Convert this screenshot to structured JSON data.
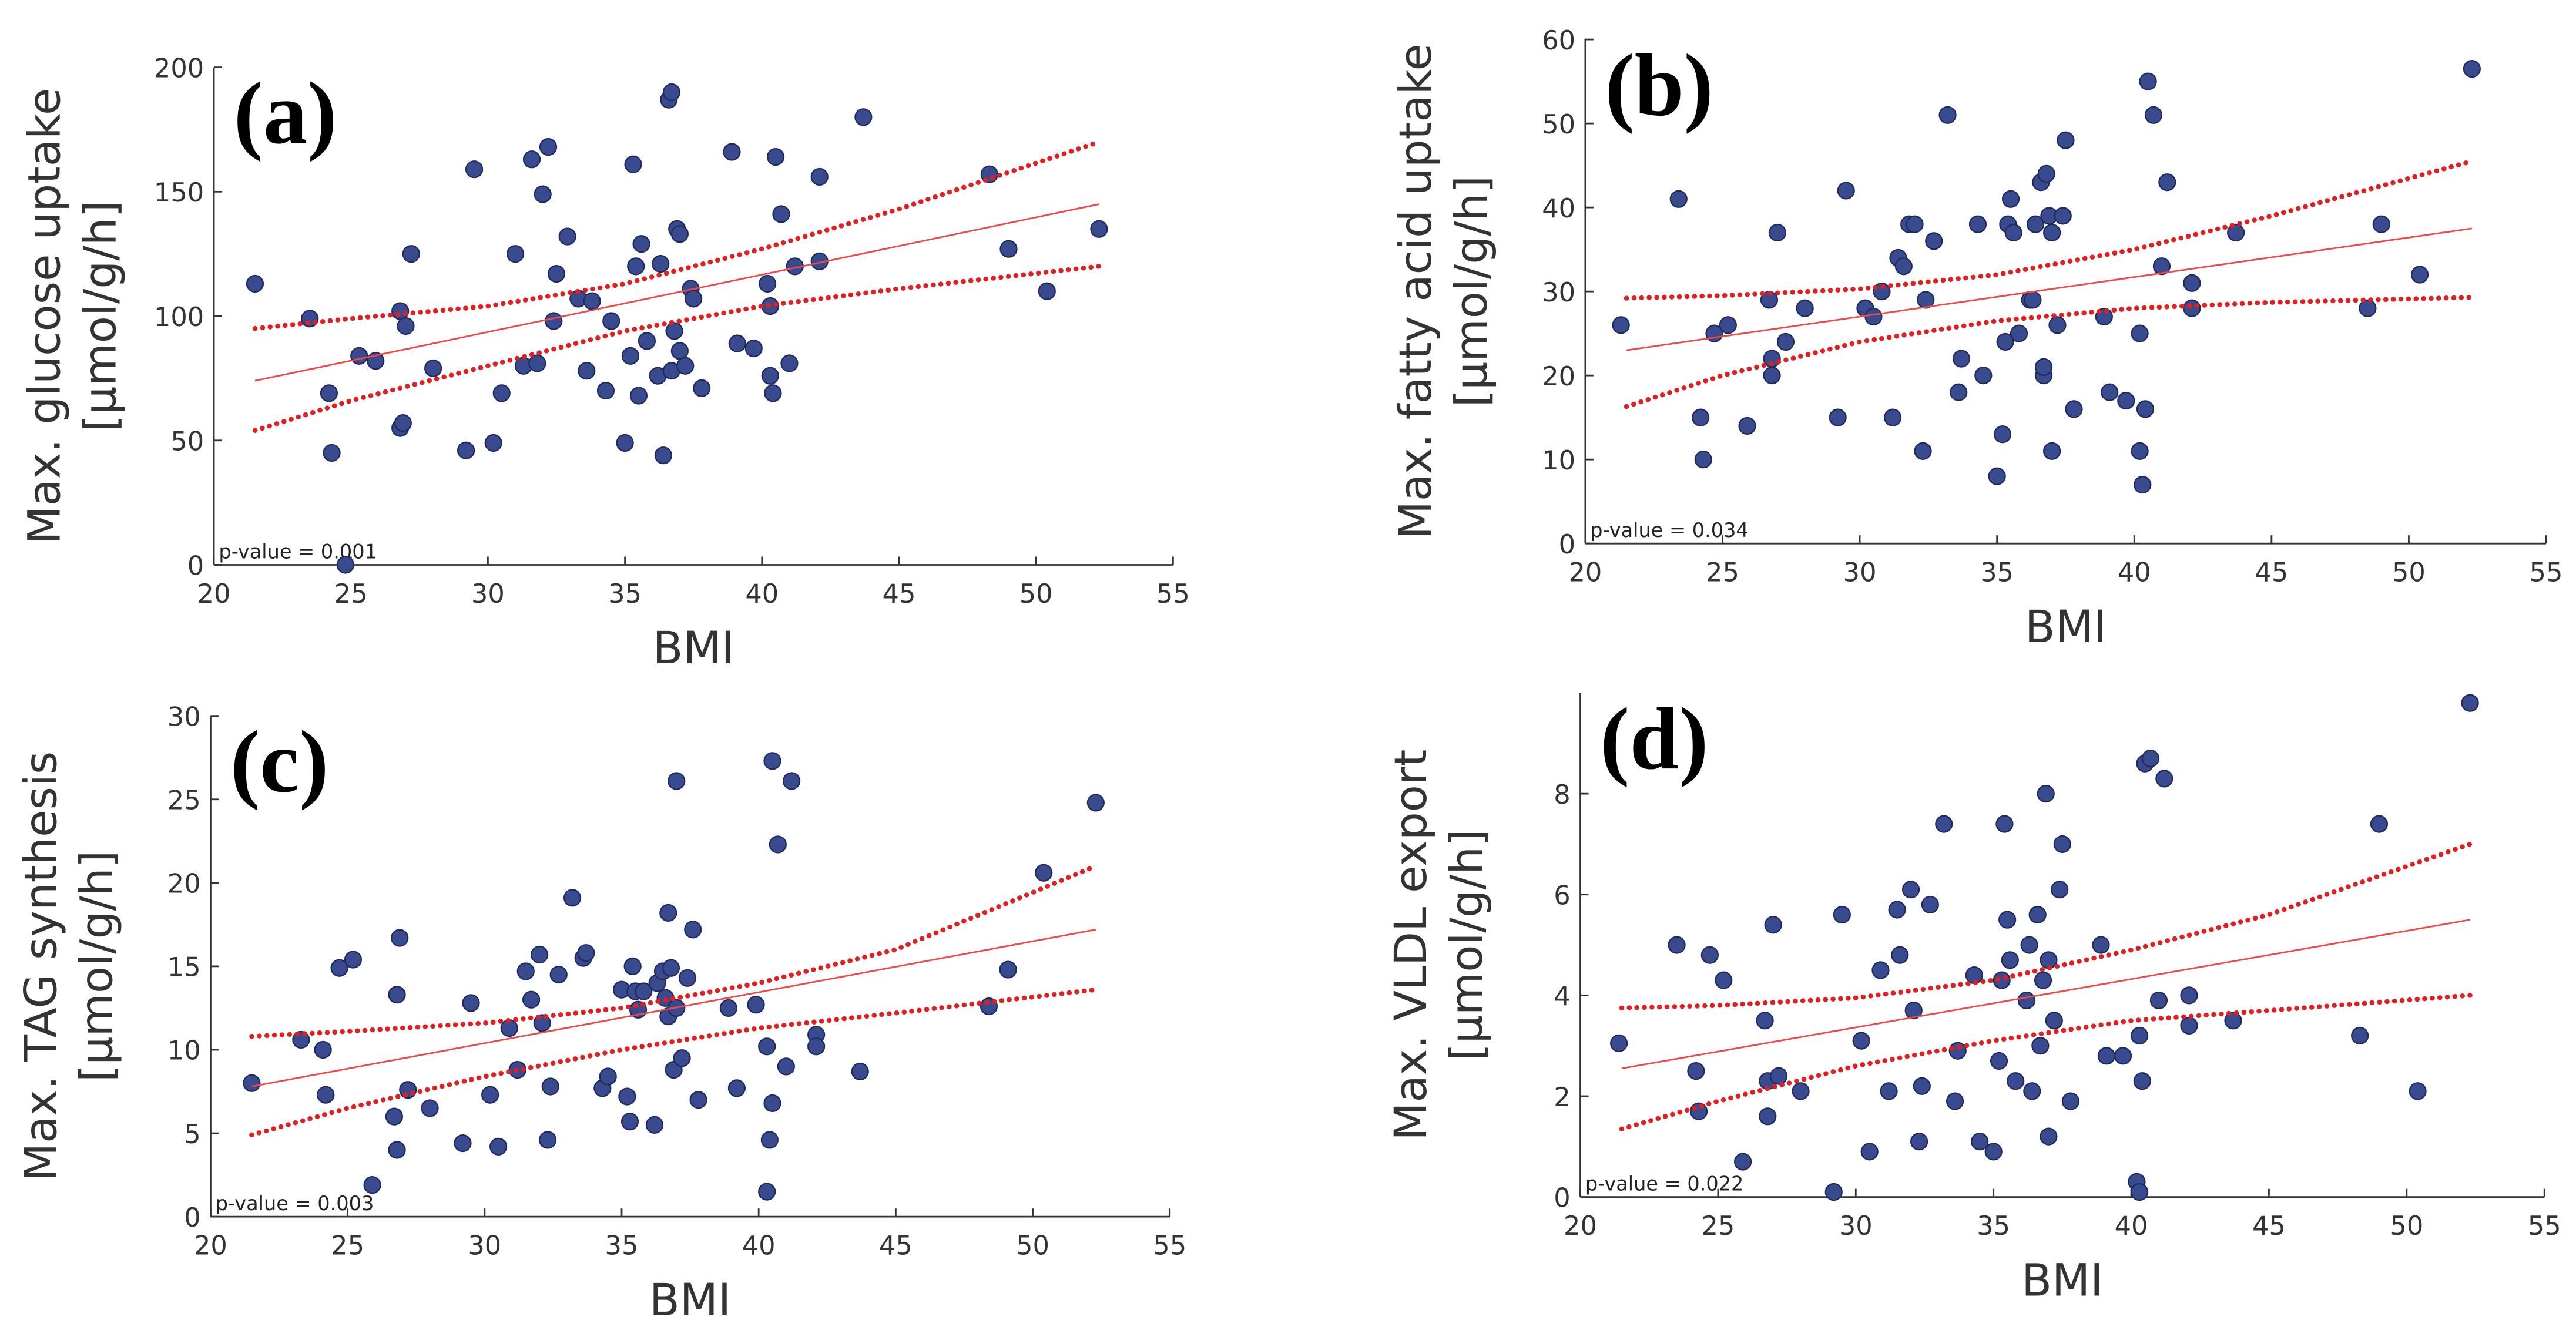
{
  "chart_data": [
    {
      "type": "scatter",
      "label": "(a)",
      "ylabel": [
        "Max. glucose uptake",
        "[μmol/g/h]"
      ],
      "xlabel": "BMI",
      "annotation": "p-value = 0.001",
      "xlim": [
        20,
        55
      ],
      "ylim": [
        0,
        200
      ],
      "xticks": [
        20,
        25,
        30,
        35,
        40,
        45,
        50,
        55
      ],
      "yticks": [
        0,
        50,
        100,
        150,
        200
      ],
      "points": {
        "color": "#3a4a8f",
        "x": [
          21.5,
          23.5,
          24.2,
          24.3,
          24.8,
          25.3,
          25.9,
          26.8,
          26.8,
          26.9,
          27,
          27.2,
          28,
          29.2,
          29.5,
          30.2,
          30.5,
          31,
          31.3,
          31.6,
          31.8,
          32,
          32.2,
          32.4,
          32.5,
          32.9,
          33.3,
          33.6,
          33.8,
          34.3,
          34.5,
          35,
          35.2,
          35.3,
          35.4,
          35.5,
          35.6,
          35.8,
          36.2,
          36.3,
          36.4,
          36.6,
          36.7,
          36.7,
          36.8,
          36.9,
          37,
          37,
          37.2,
          37.4,
          37.5,
          37.8,
          38.9,
          39.1,
          39.7,
          40.2,
          40.3,
          40.3,
          40.4,
          40.5,
          40.7,
          41,
          41.2,
          42.1,
          42.1,
          43.7,
          48.3,
          49,
          50.4,
          52.3
        ],
        "y": [
          113,
          99,
          69,
          45,
          0,
          84,
          82,
          102,
          55,
          57,
          96,
          125,
          79,
          46,
          159,
          49,
          69,
          125,
          80,
          163,
          81,
          149,
          168,
          98,
          117,
          132,
          107,
          78,
          106,
          70,
          98,
          49,
          84,
          161,
          120,
          68,
          129,
          90,
          76,
          121,
          44,
          187,
          190,
          78,
          94,
          135,
          133,
          86,
          80,
          111,
          107,
          71,
          166,
          89,
          87,
          113,
          104,
          76,
          69,
          164,
          141,
          81,
          120,
          156,
          122,
          180,
          157,
          127,
          110,
          135
        ]
      },
      "fit": {
        "color": "#f04848",
        "x": [
          21.5,
          52.3
        ],
        "y": [
          74,
          145
        ]
      },
      "ci_upper": {
        "color": "#e02020",
        "x": [
          21.5,
          25,
          30,
          35,
          40,
          45,
          52.3
        ],
        "y": [
          95,
          99,
          104,
          113,
          127,
          143,
          170
        ]
      },
      "ci_lower": {
        "color": "#e02020",
        "x": [
          21.5,
          25,
          30,
          35,
          40,
          45,
          52.3
        ],
        "y": [
          54,
          66,
          80,
          94,
          104,
          111,
          120
        ]
      }
    },
    {
      "type": "scatter",
      "label": "(b)",
      "ylabel": [
        "Max. fatty acid uptake",
        "[μmol/g/h]"
      ],
      "xlabel": "BMI",
      "annotation": "p-value = 0.034",
      "xlim": [
        20,
        55
      ],
      "ylim": [
        0,
        60
      ],
      "xticks": [
        20,
        25,
        30,
        35,
        40,
        45,
        50,
        55
      ],
      "yticks": [
        0,
        10,
        20,
        30,
        40,
        50,
        60
      ],
      "points": {
        "color": "#3a4a8f",
        "x": [
          21.3,
          23.4,
          24.2,
          24.3,
          24.7,
          25.2,
          25.9,
          26.7,
          26.8,
          26.8,
          27,
          27.3,
          28,
          29.2,
          29.5,
          30.2,
          30.5,
          30.8,
          31.2,
          31.4,
          31.6,
          31.8,
          32,
          32.3,
          32.4,
          32.7,
          33.2,
          33.6,
          33.7,
          34.3,
          34.5,
          35,
          35.2,
          35.3,
          35.4,
          35.5,
          35.6,
          35.8,
          36.2,
          36.3,
          36.4,
          36.6,
          36.7,
          36.7,
          36.8,
          36.9,
          37,
          37,
          37.2,
          37.4,
          37.5,
          37.8,
          38.9,
          39.1,
          39.7,
          40.2,
          40.2,
          40.3,
          40.4,
          40.5,
          40.7,
          41,
          41.2,
          42.1,
          42.1,
          43.7,
          48.5,
          49,
          50.4,
          52.3
        ],
        "y": [
          26,
          41,
          15,
          10,
          25,
          26,
          14,
          29,
          22,
          20,
          37,
          24,
          28,
          15,
          42,
          28,
          27,
          30,
          15,
          34,
          33,
          38,
          38,
          11,
          29,
          36,
          51,
          18,
          22,
          38,
          20,
          8,
          13,
          24,
          38,
          41,
          37,
          25,
          29,
          29,
          38,
          43,
          20,
          21,
          44,
          39,
          37,
          11,
          26,
          39,
          48,
          16,
          27,
          18,
          17,
          11,
          25,
          7,
          16,
          55,
          51,
          33,
          43,
          31,
          28,
          37,
          28,
          38,
          32,
          56.5
        ]
      },
      "fit": {
        "color": "#f04848",
        "x": [
          21.5,
          52.3
        ],
        "y": [
          23,
          37.5
        ]
      },
      "ci_upper": {
        "color": "#e02020",
        "x": [
          21.5,
          25,
          30,
          35,
          40,
          45,
          52.3
        ],
        "y": [
          29.2,
          29.5,
          30.3,
          32,
          35,
          39,
          45.5
        ]
      },
      "ci_lower": {
        "color": "#e02020",
        "x": [
          21.5,
          25,
          30,
          35,
          40,
          45,
          52.3
        ],
        "y": [
          16.3,
          20,
          24,
          26.5,
          28,
          28.7,
          29.3
        ]
      }
    },
    {
      "type": "scatter",
      "label": "(c)",
      "ylabel": [
        "Max. TAG synthesis",
        "[μmol/g/h]"
      ],
      "xlabel": "BMI",
      "annotation": "p-value = 0.003",
      "xlim": [
        20,
        55
      ],
      "ylim": [
        0,
        30
      ],
      "xticks": [
        20,
        25,
        30,
        35,
        40,
        45,
        50,
        55
      ],
      "yticks": [
        0,
        5,
        10,
        15,
        20,
        25,
        30
      ],
      "points": {
        "color": "#3a4a8f",
        "x": [
          21.5,
          23.3,
          24.1,
          24.2,
          24.7,
          25.2,
          25.9,
          26.7,
          26.8,
          26.8,
          26.9,
          27.2,
          28,
          29.2,
          29.5,
          30.2,
          30.5,
          30.9,
          31.2,
          31.5,
          31.7,
          32,
          32.1,
          32.3,
          32.4,
          32.7,
          33.2,
          33.6,
          33.7,
          34.3,
          34.5,
          35,
          35.2,
          35.3,
          35.4,
          35.5,
          35.6,
          35.8,
          36.2,
          36.3,
          36.5,
          36.6,
          36.7,
          36.7,
          36.8,
          36.9,
          37,
          37,
          37.2,
          37.4,
          37.6,
          37.8,
          38.9,
          39.2,
          39.9,
          40.3,
          40.3,
          40.4,
          40.5,
          40.5,
          40.7,
          41,
          41.2,
          42.1,
          42.1,
          43.7,
          48.4,
          49.1,
          50.4,
          52.3
        ],
        "y": [
          8,
          10.6,
          10,
          7.3,
          14.9,
          15.4,
          1.9,
          6,
          4,
          13.3,
          16.7,
          7.6,
          6.5,
          4.4,
          12.8,
          7.3,
          4.2,
          11.3,
          8.8,
          14.7,
          13,
          15.7,
          11.6,
          4.6,
          7.8,
          14.5,
          19.1,
          15.5,
          15.8,
          7.7,
          8.4,
          13.6,
          7.2,
          5.7,
          15,
          13.5,
          12.4,
          13.5,
          5.5,
          14,
          14.7,
          13.1,
          18.2,
          12,
          14.9,
          8.8,
          12.5,
          26.1,
          9.5,
          14.3,
          17.2,
          7,
          12.5,
          7.7,
          12.7,
          10.2,
          1.5,
          4.6,
          6.8,
          27.3,
          22.3,
          9,
          26.1,
          10.9,
          10.2,
          8.7,
          12.6,
          14.8,
          20.6,
          24.8
        ]
      },
      "fit": {
        "color": "#f04848",
        "x": [
          21.5,
          52.3
        ],
        "y": [
          7.8,
          17.2
        ]
      },
      "ci_upper": {
        "color": "#e02020",
        "x": [
          21.5,
          25,
          30,
          35,
          40,
          45,
          52.3
        ],
        "y": [
          10.8,
          11.1,
          11.6,
          12.5,
          14,
          16,
          21
        ]
      },
      "ci_lower": {
        "color": "#e02020",
        "x": [
          21.5,
          25,
          30,
          35,
          40,
          45,
          52.3
        ],
        "y": [
          4.9,
          6.5,
          8.4,
          10,
          11.3,
          12.2,
          13.6
        ]
      }
    },
    {
      "type": "scatter",
      "label": "(d)",
      "ylabel": [
        "Max. VLDL export",
        "[μmol/g/h]"
      ],
      "xlabel": "BMI",
      "annotation": "p-value = 0.022",
      "xlim": [
        20,
        55
      ],
      "ylim": [
        0,
        10
      ],
      "xticks": [
        20,
        25,
        30,
        35,
        40,
        45,
        50,
        55
      ],
      "yticks": [
        0,
        2,
        4,
        6,
        8
      ],
      "points": {
        "color": "#3a4a8f",
        "x": [
          21.4,
          23.5,
          24.2,
          24.3,
          24.7,
          25.2,
          25.9,
          26.7,
          26.8,
          26.8,
          27,
          27.2,
          28,
          29.2,
          29.5,
          30.2,
          30.5,
          30.9,
          31.2,
          31.5,
          31.6,
          32,
          32.1,
          32.3,
          32.4,
          32.7,
          33.2,
          33.6,
          33.7,
          34.3,
          34.5,
          35,
          35.2,
          35.3,
          35.4,
          35.5,
          35.6,
          35.8,
          36.2,
          36.3,
          36.4,
          36.6,
          36.7,
          36.8,
          36.9,
          37,
          37,
          37.2,
          37.4,
          37.5,
          37.8,
          38.9,
          39.1,
          39.7,
          40.2,
          40.3,
          40.3,
          40.4,
          40.5,
          40.7,
          41,
          41.2,
          42.1,
          42.1,
          43.7,
          48.3,
          49,
          50.4,
          52.3
        ],
        "y": [
          3.05,
          5,
          2.5,
          1.7,
          4.8,
          4.3,
          0.7,
          3.5,
          1.6,
          2.3,
          5.4,
          2.4,
          2.1,
          0.1,
          5.6,
          3.1,
          0.9,
          4.5,
          2.1,
          5.7,
          4.8,
          6.1,
          3.7,
          1.1,
          2.2,
          5.8,
          7.4,
          1.9,
          2.9,
          4.4,
          1.1,
          0.9,
          2.7,
          4.3,
          7.4,
          5.5,
          4.7,
          2.3,
          3.9,
          5,
          2.1,
          5.6,
          3,
          4.3,
          8,
          1.2,
          4.7,
          3.5,
          6.1,
          7,
          1.9,
          5,
          2.8,
          2.8,
          0.3,
          0.1,
          3.2,
          2.3,
          8.6,
          8.7,
          3.9,
          8.3,
          4,
          3.4,
          3.5,
          3.2,
          7.4,
          2.1,
          9.8
        ]
      },
      "fit": {
        "color": "#f04848",
        "x": [
          21.5,
          52.3
        ],
        "y": [
          2.55,
          5.5
        ]
      },
      "ci_upper": {
        "color": "#e02020",
        "x": [
          21.5,
          25,
          30,
          35,
          40,
          45,
          52.3
        ],
        "y": [
          3.75,
          3.8,
          3.95,
          4.3,
          4.9,
          5.6,
          7
        ]
      },
      "ci_lower": {
        "color": "#e02020",
        "x": [
          21.5,
          25,
          30,
          35,
          40,
          45,
          52.3
        ],
        "y": [
          1.35,
          1.9,
          2.6,
          3.1,
          3.5,
          3.7,
          4
        ]
      }
    }
  ]
}
